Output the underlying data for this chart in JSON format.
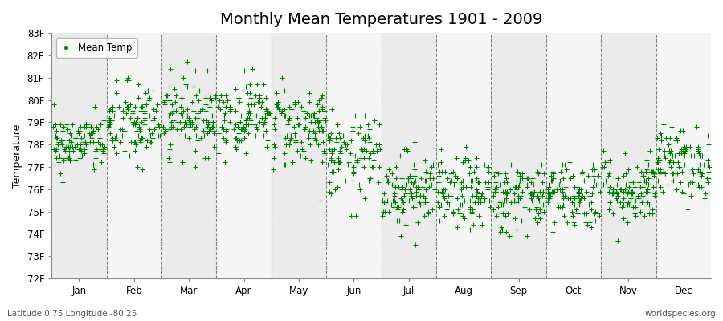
{
  "title": "Monthly Mean Temperatures 1901 - 2009",
  "ylabel": "Temperature",
  "footer_left": "Latitude 0.75 Longitude -80.25",
  "footer_right": "worldspecies.org",
  "legend_label": "Mean Temp",
  "ylim": [
    72,
    83
  ],
  "yticks": [
    72,
    73,
    74,
    75,
    76,
    77,
    78,
    79,
    80,
    81,
    82,
    83
  ],
  "ytick_labels": [
    "72F",
    "73F",
    "74F",
    "75F",
    "76F",
    "77F",
    "78F",
    "79F",
    "80F",
    "81F",
    "82F",
    "83F"
  ],
  "months": [
    "Jan",
    "Feb",
    "Mar",
    "Apr",
    "May",
    "Jun",
    "Jul",
    "Aug",
    "Sep",
    "Oct",
    "Nov",
    "Dec"
  ],
  "month_means": [
    78.0,
    78.9,
    79.3,
    79.3,
    78.8,
    77.4,
    76.0,
    75.8,
    75.7,
    75.8,
    76.0,
    77.2
  ],
  "month_stds": [
    0.65,
    0.95,
    0.85,
    0.8,
    0.95,
    0.9,
    0.85,
    0.8,
    0.8,
    0.8,
    0.8,
    0.8
  ],
  "n_years": 109,
  "marker_color": "#008000",
  "marker": "+",
  "marker_size": 4,
  "background_color": "#ffffff",
  "band_colors": [
    "#ebebeb",
    "#f5f5f5"
  ],
  "grid_color": "#555555",
  "title_fontsize": 14,
  "label_fontsize": 9,
  "tick_fontsize": 8.5,
  "seed": 42
}
